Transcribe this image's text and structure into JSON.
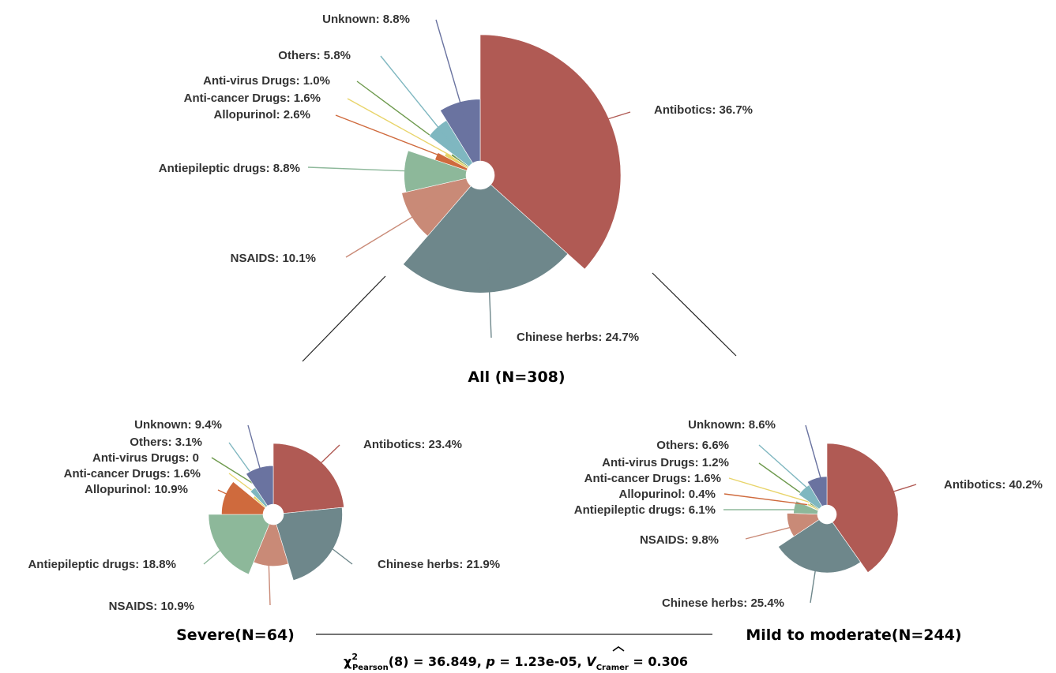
{
  "chart_data": [
    {
      "type": "pie",
      "subtype": "nightingale-rose",
      "title": "All (N=308)",
      "slices": [
        {
          "name": "Antibotics",
          "value": 36.7,
          "label": "Antibotics: 36.7%",
          "color": "#b05a54"
        },
        {
          "name": "Chinese herbs",
          "value": 24.7,
          "label": "Chinese herbs: 24.7%",
          "color": "#6e878b"
        },
        {
          "name": "NSAIDS",
          "value": 10.1,
          "label": "NSAIDS: 10.1%",
          "color": "#c98a77"
        },
        {
          "name": "Antiepileptic drugs",
          "value": 8.8,
          "label": "Antiepileptic drugs: 8.8%",
          "color": "#8db89a"
        },
        {
          "name": "Allopurinol",
          "value": 2.6,
          "label": "Allopurinol: 2.6%",
          "color": "#cf6a3d"
        },
        {
          "name": "Anti-cancer Drugs",
          "value": 1.6,
          "label": "Anti-cancer Drugs: 1.6%",
          "color": "#e8d46a"
        },
        {
          "name": "Anti-virus Drugs",
          "value": 1.0,
          "label": "Anti-virus Drugs: 1.0%",
          "color": "#6e9a4e"
        },
        {
          "name": "Others",
          "value": 5.8,
          "label": "Others: 5.8%",
          "color": "#7fb7c0"
        },
        {
          "name": "Unknown",
          "value": 8.8,
          "label": "Unknown: 8.8%",
          "color": "#6a73a0"
        }
      ]
    },
    {
      "type": "pie",
      "subtype": "nightingale-rose",
      "title": "Severe(N=64)",
      "slices": [
        {
          "name": "Antibotics",
          "value": 23.4,
          "label": "Antibotics: 23.4%",
          "color": "#b05a54"
        },
        {
          "name": "Chinese herbs",
          "value": 21.9,
          "label": "Chinese herbs: 21.9%",
          "color": "#6e878b"
        },
        {
          "name": "NSAIDS",
          "value": 10.9,
          "label": "NSAIDS: 10.9%",
          "color": "#c98a77"
        },
        {
          "name": "Antiepileptic drugs",
          "value": 18.8,
          "label": "Antiepileptic drugs: 18.8%",
          "color": "#8db89a"
        },
        {
          "name": "Allopurinol",
          "value": 10.9,
          "label": "Allopurinol: 10.9%",
          "color": "#cf6a3d"
        },
        {
          "name": "Anti-cancer Drugs",
          "value": 1.6,
          "label": "Anti-cancer Drugs: 1.6%",
          "color": "#e8d46a"
        },
        {
          "name": "Anti-virus Drugs",
          "value": 0,
          "label": "Anti-virus Drugs: 0",
          "color": "#6e9a4e"
        },
        {
          "name": "Others",
          "value": 3.1,
          "label": "Others: 3.1%",
          "color": "#7fb7c0"
        },
        {
          "name": "Unknown",
          "value": 9.4,
          "label": "Unknown: 9.4%",
          "color": "#6a73a0"
        }
      ]
    },
    {
      "type": "pie",
      "subtype": "nightingale-rose",
      "title": "Mild to moderate(N=244)",
      "slices": [
        {
          "name": "Antibotics",
          "value": 40.2,
          "label": "Antibotics: 40.2%",
          "color": "#b05a54"
        },
        {
          "name": "Chinese herbs",
          "value": 25.4,
          "label": "Chinese herbs: 25.4%",
          "color": "#6e878b"
        },
        {
          "name": "NSAIDS",
          "value": 9.8,
          "label": "NSAIDS: 9.8%",
          "color": "#c98a77"
        },
        {
          "name": "Antiepileptic drugs",
          "value": 6.1,
          "label": "Antiepileptic drugs: 6.1%",
          "color": "#8db89a"
        },
        {
          "name": "Allopurinol",
          "value": 0.4,
          "label": "Allopurinol: 0.4%",
          "color": "#cf6a3d"
        },
        {
          "name": "Anti-cancer Drugs",
          "value": 1.6,
          "label": "Anti-cancer Drugs: 1.6%",
          "color": "#e8d46a"
        },
        {
          "name": "Anti-virus Drugs",
          "value": 1.2,
          "label": "Anti-virus Drugs: 1.2%",
          "color": "#6e9a4e"
        },
        {
          "name": "Others",
          "value": 6.6,
          "label": "Others: 6.6%",
          "color": "#7fb7c0"
        },
        {
          "name": "Unknown",
          "value": 8.6,
          "label": "Unknown: 8.6%",
          "color": "#6a73a0"
        }
      ]
    }
  ],
  "statistic": {
    "chi_symbol": "χ",
    "superscript": "2",
    "subscript": "Pearson",
    "df_part": "(8) = 36.849, ",
    "p_symbol": "p",
    "p_part": " = 1.23e-05, ",
    "v_symbol": "V",
    "v_subscript": "Cramer",
    "v_part": " = 0.306"
  }
}
